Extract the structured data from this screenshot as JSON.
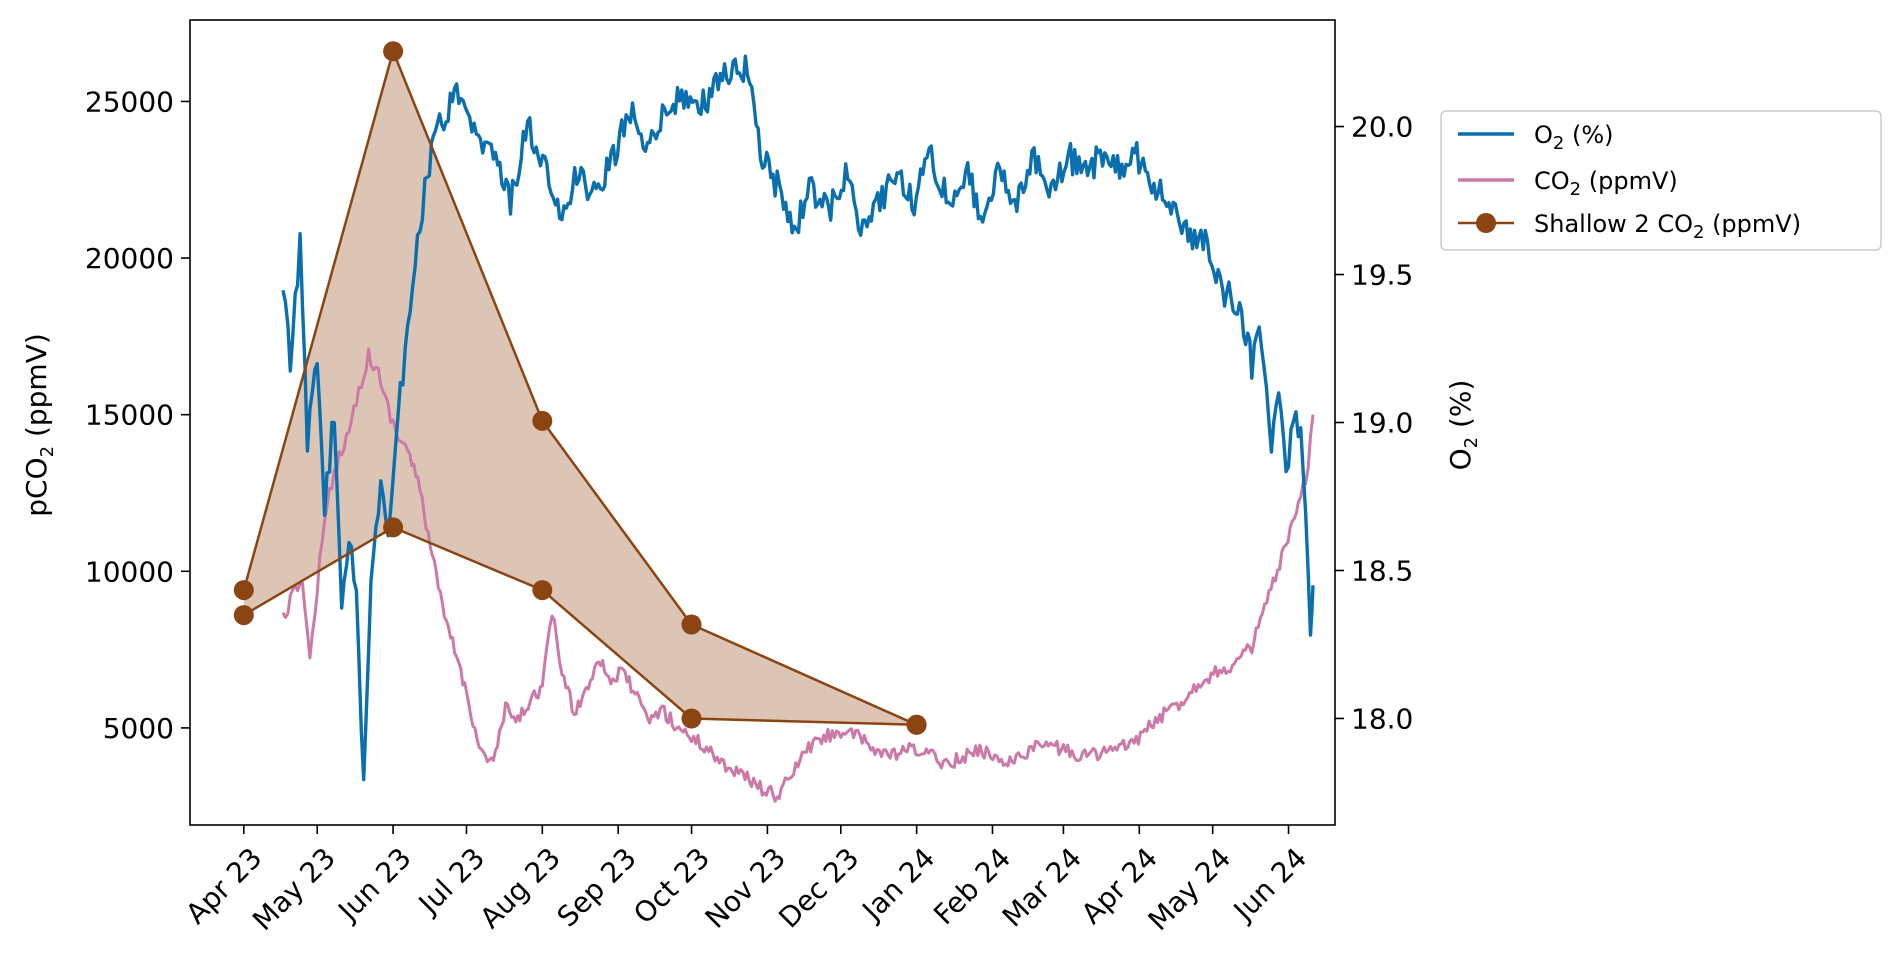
{
  "chart_data": {
    "type": "line",
    "x_ticks": [
      "Apr 23",
      "May 23",
      "Jun 23",
      "Jul 23",
      "Aug 23",
      "Sep 23",
      "Oct 23",
      "Nov 23",
      "Dec 23",
      "Jan 24",
      "Feb 24",
      "Mar 24",
      "Apr 24",
      "May 24",
      "Jun 24"
    ],
    "xlim": [
      "2023-03-10",
      "2024-06-20"
    ],
    "y_left": {
      "label_main": "pCO",
      "label_sub": "2",
      "label_tail": " (ppmV)",
      "ticks": [
        5000,
        10000,
        15000,
        20000,
        25000
      ],
      "ylim": [
        1900,
        27600
      ]
    },
    "y_right": {
      "label_main": "O",
      "label_sub": "2",
      "label_tail": " (%)",
      "ticks": [
        "18.0",
        "18.5",
        "19.0",
        "19.5",
        "20.0"
      ],
      "ylim": [
        17.64,
        20.36
      ]
    },
    "legend": {
      "position": "outside-right",
      "entries": [
        {
          "main": "O",
          "sub": "2",
          "tail": " (%)"
        },
        {
          "main": "CO",
          "sub": "2",
          "tail": " (ppmV)"
        },
        {
          "main": "Shallow 2 CO",
          "sub": "2",
          "tail": " (ppmV)"
        }
      ]
    },
    "series": [
      {
        "key": "o2",
        "axis": "right",
        "color": "#0a6faf",
        "points": [
          [
            "2023-04-17",
            19.45
          ],
          [
            "2023-04-20",
            19.2
          ],
          [
            "2023-04-24",
            19.6
          ],
          [
            "2023-04-27",
            18.95
          ],
          [
            "2023-05-01",
            19.2
          ],
          [
            "2023-05-04",
            18.7
          ],
          [
            "2023-05-08",
            19.05
          ],
          [
            "2023-05-11",
            18.35
          ],
          [
            "2023-05-14",
            18.6
          ],
          [
            "2023-05-17",
            18.45
          ],
          [
            "2023-05-20",
            17.78
          ],
          [
            "2023-05-23",
            18.5
          ],
          [
            "2023-05-27",
            18.8
          ],
          [
            "2023-05-30",
            18.6
          ],
          [
            "2023-06-03",
            19.05
          ],
          [
            "2023-06-07",
            19.3
          ],
          [
            "2023-06-11",
            19.6
          ],
          [
            "2023-06-15",
            19.85
          ],
          [
            "2023-06-20",
            20.0
          ],
          [
            "2023-06-27",
            20.1
          ],
          [
            "2023-07-05",
            19.95
          ],
          [
            "2023-07-12",
            19.9
          ],
          [
            "2023-07-19",
            19.75
          ],
          [
            "2023-07-26",
            20.0
          ],
          [
            "2023-08-02",
            19.85
          ],
          [
            "2023-08-09",
            19.7
          ],
          [
            "2023-08-16",
            19.85
          ],
          [
            "2023-08-23",
            19.75
          ],
          [
            "2023-08-30",
            19.9
          ],
          [
            "2023-09-06",
            20.05
          ],
          [
            "2023-09-13",
            19.95
          ],
          [
            "2023-09-20",
            20.05
          ],
          [
            "2023-09-27",
            20.1
          ],
          [
            "2023-10-04",
            20.05
          ],
          [
            "2023-10-11",
            20.15
          ],
          [
            "2023-10-18",
            20.2
          ],
          [
            "2023-10-23",
            20.2
          ],
          [
            "2023-10-30",
            19.9
          ],
          [
            "2023-11-05",
            19.8
          ],
          [
            "2023-11-12",
            19.65
          ],
          [
            "2023-11-19",
            19.8
          ],
          [
            "2023-11-26",
            19.7
          ],
          [
            "2023-12-03",
            19.85
          ],
          [
            "2023-12-10",
            19.65
          ],
          [
            "2023-12-17",
            19.75
          ],
          [
            "2023-12-24",
            19.85
          ],
          [
            "2023-12-31",
            19.75
          ],
          [
            "2024-01-07",
            19.9
          ],
          [
            "2024-01-14",
            19.75
          ],
          [
            "2024-01-21",
            19.85
          ],
          [
            "2024-01-28",
            19.7
          ],
          [
            "2024-02-04",
            19.85
          ],
          [
            "2024-02-11",
            19.75
          ],
          [
            "2024-02-18",
            19.9
          ],
          [
            "2024-02-25",
            19.8
          ],
          [
            "2024-03-03",
            19.9
          ],
          [
            "2024-03-10",
            19.85
          ],
          [
            "2024-03-17",
            19.9
          ],
          [
            "2024-03-24",
            19.85
          ],
          [
            "2024-03-31",
            19.9
          ],
          [
            "2024-04-07",
            19.8
          ],
          [
            "2024-04-14",
            19.75
          ],
          [
            "2024-04-21",
            19.65
          ],
          [
            "2024-04-28",
            19.6
          ],
          [
            "2024-05-05",
            19.45
          ],
          [
            "2024-05-12",
            19.4
          ],
          [
            "2024-05-17",
            19.2
          ],
          [
            "2024-05-21",
            19.3
          ],
          [
            "2024-05-25",
            18.95
          ],
          [
            "2024-05-28",
            19.15
          ],
          [
            "2024-05-31",
            18.8
          ],
          [
            "2024-06-03",
            19.05
          ],
          [
            "2024-06-06",
            18.95
          ],
          [
            "2024-06-08",
            18.65
          ],
          [
            "2024-06-10",
            18.25
          ],
          [
            "2024-06-11",
            18.45
          ]
        ]
      },
      {
        "key": "co2",
        "axis": "left",
        "color": "#cc79a7",
        "points": [
          [
            "2023-04-17",
            8500
          ],
          [
            "2023-04-21",
            9200
          ],
          [
            "2023-04-25",
            9800
          ],
          [
            "2023-04-28",
            7100
          ],
          [
            "2023-05-02",
            10300
          ],
          [
            "2023-05-06",
            12500
          ],
          [
            "2023-05-10",
            13700
          ],
          [
            "2023-05-14",
            14500
          ],
          [
            "2023-05-18",
            15800
          ],
          [
            "2023-05-22",
            16900
          ],
          [
            "2023-05-26",
            16300
          ],
          [
            "2023-05-30",
            15200
          ],
          [
            "2023-06-03",
            14300
          ],
          [
            "2023-06-07",
            13900
          ],
          [
            "2023-06-12",
            12600
          ],
          [
            "2023-06-17",
            10500
          ],
          [
            "2023-06-22",
            8500
          ],
          [
            "2023-06-27",
            7300
          ],
          [
            "2023-07-02",
            5800
          ],
          [
            "2023-07-07",
            4200
          ],
          [
            "2023-07-12",
            3900
          ],
          [
            "2023-07-17",
            5600
          ],
          [
            "2023-07-22",
            5200
          ],
          [
            "2023-07-27",
            5900
          ],
          [
            "2023-08-01",
            6300
          ],
          [
            "2023-08-05",
            8700
          ],
          [
            "2023-08-09",
            6800
          ],
          [
            "2023-08-14",
            5500
          ],
          [
            "2023-08-19",
            6200
          ],
          [
            "2023-08-24",
            7300
          ],
          [
            "2023-08-29",
            6500
          ],
          [
            "2023-09-03",
            6800
          ],
          [
            "2023-09-08",
            6100
          ],
          [
            "2023-09-13",
            5200
          ],
          [
            "2023-09-19",
            5600
          ],
          [
            "2023-09-24",
            5100
          ],
          [
            "2023-10-01",
            4700
          ],
          [
            "2023-10-08",
            4300
          ],
          [
            "2023-10-15",
            3800
          ],
          [
            "2023-10-22",
            3500
          ],
          [
            "2023-10-29",
            3100
          ],
          [
            "2023-11-05",
            2800
          ],
          [
            "2023-11-10",
            3400
          ],
          [
            "2023-11-17",
            4300
          ],
          [
            "2023-11-24",
            4700
          ],
          [
            "2023-12-01",
            4900
          ],
          [
            "2023-12-08",
            4700
          ],
          [
            "2023-12-15",
            4300
          ],
          [
            "2023-12-22",
            4100
          ],
          [
            "2023-12-29",
            4300
          ],
          [
            "2024-01-05",
            4200
          ],
          [
            "2024-01-12",
            3900
          ],
          [
            "2024-01-19",
            4000
          ],
          [
            "2024-01-26",
            4300
          ],
          [
            "2024-02-02",
            4100
          ],
          [
            "2024-02-09",
            3900
          ],
          [
            "2024-02-16",
            4300
          ],
          [
            "2024-02-23",
            4500
          ],
          [
            "2024-03-01",
            4300
          ],
          [
            "2024-03-08",
            4100
          ],
          [
            "2024-03-15",
            4200
          ],
          [
            "2024-03-22",
            4300
          ],
          [
            "2024-03-29",
            4500
          ],
          [
            "2024-04-05",
            5000
          ],
          [
            "2024-04-12",
            5500
          ],
          [
            "2024-04-19",
            5900
          ],
          [
            "2024-04-26",
            6500
          ],
          [
            "2024-05-03",
            6800
          ],
          [
            "2024-05-10",
            7000
          ],
          [
            "2024-05-17",
            7600
          ],
          [
            "2024-05-24",
            9200
          ],
          [
            "2024-05-31",
            10800
          ],
          [
            "2024-06-05",
            12000
          ],
          [
            "2024-06-09",
            13300
          ],
          [
            "2024-06-11",
            15000
          ]
        ]
      },
      {
        "key": "shallow2",
        "axis": "left",
        "color": "#8b4513",
        "fill": "#dcc5b5",
        "upper": [
          [
            "2023-04-01",
            9400
          ],
          [
            "2023-06-01",
            26600
          ],
          [
            "2023-08-01",
            14800
          ],
          [
            "2023-10-01",
            8300
          ],
          [
            "2024-01-01",
            5100
          ]
        ],
        "lower": [
          [
            "2023-04-01",
            8600
          ],
          [
            "2023-06-01",
            11400
          ],
          [
            "2023-08-01",
            9400
          ],
          [
            "2023-10-01",
            5300
          ],
          [
            "2024-01-01",
            5100
          ]
        ]
      }
    ]
  }
}
